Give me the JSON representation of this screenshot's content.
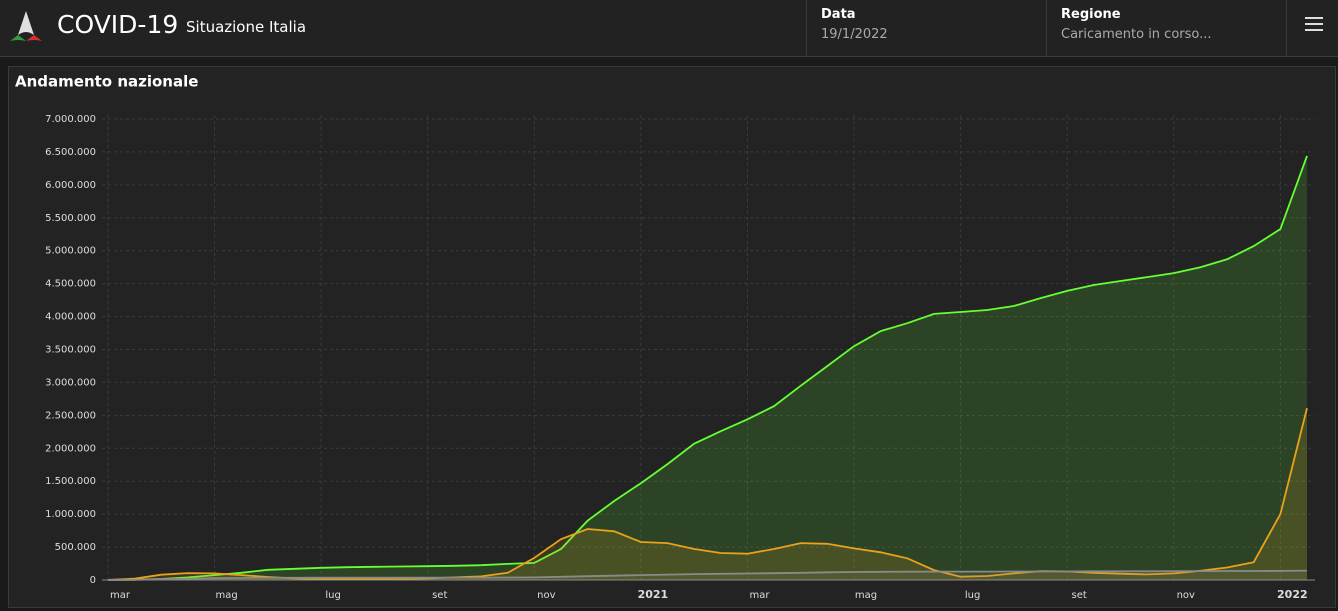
{
  "header": {
    "title": "COVID-19",
    "subtitle": "Situazione Italia",
    "date_label": "Data",
    "date_value": "19/1/2022",
    "region_label": "Regione",
    "region_value": "Caricamento in corso..."
  },
  "chart_data": {
    "type": "area",
    "title": "Andamento nazionale",
    "categories": [
      "mar",
      null,
      null,
      null,
      "mag",
      null,
      null,
      null,
      "lug",
      null,
      null,
      null,
      "set",
      null,
      null,
      null,
      "nov",
      null,
      null,
      null,
      "2021",
      null,
      null,
      null,
      "mar",
      null,
      null,
      null,
      "mag",
      null,
      null,
      null,
      "lug",
      null,
      null,
      null,
      "set",
      null,
      null,
      null,
      "nov",
      null,
      null,
      null,
      "2022",
      null
    ],
    "series": [
      {
        "color": "#66ff33",
        "values": [
          0,
          5000,
          15000,
          40000,
          75000,
          110000,
          155000,
          170000,
          185000,
          195000,
          200000,
          205000,
          210000,
          215000,
          225000,
          245000,
          260000,
          470000,
          900000,
          1200000,
          1470000,
          1760000,
          2070000,
          2260000,
          2440000,
          2640000,
          2950000,
          3250000,
          3550000,
          3780000,
          3900000,
          4040000,
          4070000,
          4100000,
          4160000,
          4280000,
          4390000,
          4480000,
          4540000,
          4600000,
          4660000,
          4750000,
          4870000,
          5070000,
          5330000,
          6440000
        ]
      },
      {
        "color": "#e8a21c",
        "values": [
          1000,
          20000,
          80000,
          105000,
          100000,
          75000,
          45000,
          25000,
          15000,
          13000,
          13000,
          18000,
          25000,
          40000,
          55000,
          110000,
          335000,
          620000,
          775000,
          740000,
          577000,
          560000,
          470000,
          410000,
          400000,
          470000,
          560000,
          550000,
          480000,
          420000,
          330000,
          150000,
          50000,
          60000,
          100000,
          135000,
          130000,
          110000,
          95000,
          85000,
          100000,
          140000,
          190000,
          270000,
          1000000,
          2610000
        ]
      },
      {
        "color": "#8a8a8a",
        "values": [
          0,
          2000,
          12000,
          22000,
          28000,
          31000,
          33000,
          34000,
          35000,
          35000,
          35000,
          35000,
          35500,
          36000,
          36500,
          38000,
          40000,
          48000,
          58000,
          66000,
          75000,
          82000,
          89000,
          94000,
          98000,
          103000,
          110000,
          117000,
          122000,
          125000,
          126500,
          127000,
          127500,
          128000,
          128500,
          129500,
          130500,
          131500,
          132000,
          132500,
          133000,
          134500,
          136000,
          137000,
          138000,
          142000
        ]
      }
    ],
    "ylim": [
      0,
      7000000
    ],
    "yticks": [
      0,
      {
        "value": 500000,
        "label": "500.000"
      },
      {
        "value": 1000000,
        "label": "1.000.000"
      },
      {
        "value": 1500000,
        "label": "1.500.000"
      },
      {
        "value": 2000000,
        "label": "2.000.000"
      },
      {
        "value": 2500000,
        "label": "2.500.000"
      },
      {
        "value": 3000000,
        "label": "3.000.000"
      },
      {
        "value": 3500000,
        "label": "3.500.000"
      },
      {
        "value": 4000000,
        "label": "4.000.000"
      },
      {
        "value": 4500000,
        "label": "4.500.000"
      },
      {
        "value": 5000000,
        "label": "5.000.000"
      },
      {
        "value": 5500000,
        "label": "5.500.000"
      },
      {
        "value": 6000000,
        "label": "6.000.000"
      },
      {
        "value": 6500000,
        "label": "6.500.000"
      },
      {
        "value": 7000000,
        "label": "7.000.000"
      }
    ],
    "grid": true
  }
}
